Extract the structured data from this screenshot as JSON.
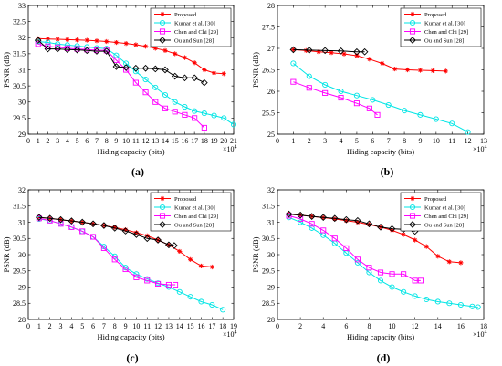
{
  "chart_data": [
    {
      "type": "line",
      "panel_label": "(a)",
      "xlabel": "Hiding capacity (bits)",
      "ylabel": "PSNR (dB)",
      "x_exponent": "×10^4",
      "xlim": [
        0,
        21
      ],
      "ylim": [
        29,
        33
      ],
      "xticks": [
        "0",
        "1",
        "2",
        "3",
        "4",
        "5",
        "6",
        "7",
        "8",
        "9",
        "10",
        "11",
        "12",
        "13",
        "14",
        "15",
        "16",
        "17",
        "18",
        "19",
        "20",
        "21"
      ],
      "yticks": [
        "29",
        "29.5",
        "30",
        "30.5",
        "31",
        "31.5",
        "32",
        "32.5",
        "33"
      ],
      "legend_position": "top-right",
      "series": [
        {
          "name": "Proposed",
          "color": "#ff0000",
          "marker": "star",
          "x": [
            1,
            2,
            3,
            4,
            5,
            6,
            7,
            8,
            9,
            10,
            11,
            12,
            13,
            14,
            15,
            16,
            17,
            18,
            19,
            20
          ],
          "y": [
            31.97,
            31.96,
            31.95,
            31.94,
            31.93,
            31.92,
            31.9,
            31.88,
            31.85,
            31.82,
            31.78,
            31.73,
            31.67,
            31.6,
            31.5,
            31.38,
            31.22,
            31.0,
            30.9,
            30.88
          ]
        },
        {
          "name": "Kumar et al. [30]",
          "color": "#00e5e5",
          "marker": "circle",
          "x": [
            1,
            2,
            3,
            4,
            5,
            6,
            7,
            8,
            9,
            10,
            11,
            12,
            13,
            14,
            15,
            16,
            17,
            18,
            19,
            20,
            21
          ],
          "y": [
            31.88,
            31.85,
            31.8,
            31.77,
            31.74,
            31.71,
            31.68,
            31.66,
            31.45,
            31.2,
            30.95,
            30.7,
            30.45,
            30.22,
            30.0,
            29.85,
            29.72,
            29.65,
            29.58,
            29.5,
            29.3
          ]
        },
        {
          "name": "Chen and Chi [29]",
          "color": "#ff00ff",
          "marker": "square",
          "x": [
            1,
            2,
            3,
            4,
            5,
            6,
            7,
            8,
            9,
            10,
            11,
            12,
            13,
            14,
            15,
            16,
            17,
            18
          ],
          "y": [
            31.8,
            31.73,
            31.7,
            31.67,
            31.65,
            31.63,
            31.61,
            31.6,
            31.3,
            31.0,
            30.6,
            30.3,
            30.0,
            29.8,
            29.7,
            29.6,
            29.5,
            29.2
          ]
        },
        {
          "name": "Ou and Sun [28]",
          "color": "#000000",
          "marker": "diamond",
          "x": [
            1,
            2,
            3,
            4,
            5,
            6,
            7,
            8,
            9,
            10,
            11,
            12,
            13,
            14,
            15,
            16,
            17,
            18
          ],
          "y": [
            31.92,
            31.65,
            31.65,
            31.63,
            31.62,
            31.6,
            31.58,
            31.58,
            31.1,
            31.07,
            31.05,
            31.05,
            31.03,
            31.0,
            30.8,
            30.75,
            30.75,
            30.6
          ]
        }
      ]
    },
    {
      "type": "line",
      "panel_label": "(b)",
      "xlabel": "Hiding capacity (bits)",
      "ylabel": "PSNR (dB)",
      "x_exponent": "×10^4",
      "xlim": [
        0,
        13
      ],
      "ylim": [
        25,
        28
      ],
      "xticks": [
        "0",
        "1",
        "2",
        "3",
        "4",
        "5",
        "6",
        "7",
        "8",
        "9",
        "10",
        "11",
        "12",
        "13"
      ],
      "yticks": [
        "25",
        "25.5",
        "26",
        "26.5",
        "27",
        "27.5",
        "28"
      ],
      "legend_position": "top-right",
      "series": [
        {
          "name": "Proposed",
          "color": "#ff0000",
          "marker": "star",
          "x": [
            1,
            1.8,
            2.6,
            3.4,
            4.2,
            5.0,
            5.8,
            6.6,
            7.4,
            8.2,
            9.0,
            9.8,
            10.6
          ],
          "y": [
            26.97,
            26.95,
            26.92,
            26.9,
            26.87,
            26.83,
            26.75,
            26.65,
            26.52,
            26.5,
            26.49,
            26.48,
            26.47
          ]
        },
        {
          "name": "Kumar et al. [30]",
          "color": "#00e5e5",
          "marker": "circle",
          "x": [
            1,
            2,
            3,
            4,
            5,
            6,
            7,
            8,
            9,
            10,
            11,
            12
          ],
          "y": [
            26.65,
            26.35,
            26.15,
            26.0,
            25.9,
            25.8,
            25.68,
            25.55,
            25.45,
            25.35,
            25.25,
            25.05
          ]
        },
        {
          "name": "Chen and Chi [29]",
          "color": "#ff00ff",
          "marker": "square",
          "x": [
            1,
            2,
            3,
            4,
            5,
            5.8,
            6.3
          ],
          "y": [
            26.22,
            26.08,
            25.96,
            25.85,
            25.72,
            25.6,
            25.45
          ]
        },
        {
          "name": "Ou and Sun [28]",
          "color": "#000000",
          "marker": "diamond",
          "x": [
            1,
            2,
            3,
            4,
            5,
            5.5
          ],
          "y": [
            26.97,
            26.96,
            26.95,
            26.94,
            26.92,
            26.92
          ]
        }
      ]
    },
    {
      "type": "line",
      "panel_label": "(c)",
      "xlabel": "Hiding capacity (bits)",
      "ylabel": "PSNR (dB)",
      "x_exponent": "×10^4",
      "xlim": [
        0,
        19
      ],
      "ylim": [
        28,
        32
      ],
      "xticks": [
        "0",
        "1",
        "2",
        "3",
        "4",
        "5",
        "6",
        "7",
        "8",
        "9",
        "10",
        "11",
        "12",
        "13",
        "14",
        "15",
        "16",
        "17",
        "18",
        "19"
      ],
      "yticks": [
        "28",
        "28.5",
        "29",
        "29.5",
        "30",
        "30.5",
        "31",
        "31.5",
        "32"
      ],
      "legend_position": "top-right",
      "series": [
        {
          "name": "Proposed",
          "color": "#ff0000",
          "marker": "star",
          "x": [
            1,
            2,
            3,
            4,
            5,
            6,
            7,
            8,
            9,
            10,
            11,
            12,
            13,
            14,
            15,
            16,
            17
          ],
          "y": [
            31.15,
            31.12,
            31.08,
            31.04,
            31.0,
            30.95,
            30.9,
            30.84,
            30.77,
            30.68,
            30.58,
            30.45,
            30.3,
            30.1,
            29.85,
            29.65,
            29.62
          ]
        },
        {
          "name": "Kumar et al. [30]",
          "color": "#00e5e5",
          "marker": "circle",
          "x": [
            1,
            2,
            3,
            4,
            5,
            6,
            7,
            8,
            9,
            10,
            11,
            12,
            13,
            14,
            15,
            16,
            17,
            18
          ],
          "y": [
            31.1,
            31.05,
            30.95,
            30.85,
            30.72,
            30.55,
            30.25,
            29.95,
            29.6,
            29.4,
            29.25,
            29.12,
            29.0,
            28.85,
            28.7,
            28.55,
            28.45,
            28.3
          ]
        },
        {
          "name": "Chen and Chi [29]",
          "color": "#ff00ff",
          "marker": "square",
          "x": [
            1,
            2,
            3,
            4,
            5,
            6,
            7,
            8,
            9,
            10,
            11,
            12,
            13,
            13.6
          ],
          "y": [
            31.12,
            31.05,
            30.95,
            30.85,
            30.72,
            30.55,
            30.2,
            29.85,
            29.55,
            29.3,
            29.2,
            29.1,
            29.07,
            29.07
          ]
        },
        {
          "name": "Ou and Sun [28]",
          "color": "#000000",
          "marker": "diamond",
          "x": [
            1,
            2,
            3,
            4,
            5,
            6,
            7,
            8,
            9,
            10,
            11,
            12,
            13,
            13.5
          ],
          "y": [
            31.15,
            31.12,
            31.08,
            31.04,
            31.0,
            30.95,
            30.9,
            30.82,
            30.73,
            30.62,
            30.5,
            30.45,
            30.3,
            30.28
          ]
        }
      ]
    },
    {
      "type": "line",
      "panel_label": "(d)",
      "xlabel": "Hiding capacity (bits)",
      "ylabel": "PSNR (dB)",
      "x_exponent": "×10^4",
      "xlim": [
        0,
        18
      ],
      "ylim": [
        28,
        32
      ],
      "xticks": [
        "0",
        "2",
        "4",
        "6",
        "8",
        "10",
        "12",
        "14",
        "16",
        "18"
      ],
      "yticks": [
        "28",
        "28.5",
        "29",
        "29.5",
        "30",
        "30.5",
        "31",
        "31.5",
        "32"
      ],
      "legend_position": "top-right",
      "series": [
        {
          "name": "Proposed",
          "color": "#ff0000",
          "marker": "star",
          "x": [
            1,
            2,
            3,
            4,
            5,
            6,
            7,
            8,
            9,
            10,
            11,
            12,
            13,
            14,
            15,
            16
          ],
          "y": [
            31.25,
            31.22,
            31.18,
            31.14,
            31.1,
            31.05,
            31.0,
            30.93,
            30.85,
            30.75,
            30.62,
            30.45,
            30.25,
            29.95,
            29.78,
            29.75
          ]
        },
        {
          "name": "Kumar et al. [30]",
          "color": "#00e5e5",
          "marker": "circle",
          "x": [
            1,
            2,
            3,
            4,
            5,
            6,
            7,
            8,
            9,
            10,
            11,
            12,
            13,
            14,
            15,
            16,
            17,
            17.5
          ],
          "y": [
            31.15,
            31.0,
            30.82,
            30.6,
            30.35,
            30.05,
            29.75,
            29.45,
            29.2,
            29.0,
            28.85,
            28.72,
            28.62,
            28.55,
            28.5,
            28.45,
            28.4,
            28.38
          ]
        },
        {
          "name": "Chen and Chi [29]",
          "color": "#ff00ff",
          "marker": "square",
          "x": [
            1,
            2,
            3,
            4,
            5,
            6,
            7,
            8,
            9,
            10,
            11,
            12,
            12.5
          ],
          "y": [
            31.2,
            31.1,
            30.95,
            30.75,
            30.5,
            30.2,
            29.85,
            29.6,
            29.45,
            29.4,
            29.4,
            29.2,
            29.2
          ]
        },
        {
          "name": "Ou and Sun [28]",
          "color": "#000000",
          "marker": "diamond",
          "x": [
            1,
            2,
            3,
            4,
            5,
            6,
            7,
            8,
            9,
            10,
            11,
            12
          ],
          "y": [
            31.25,
            31.22,
            31.18,
            31.15,
            31.12,
            31.08,
            31.05,
            30.95,
            30.85,
            30.8,
            30.78,
            30.72
          ]
        }
      ]
    }
  ]
}
